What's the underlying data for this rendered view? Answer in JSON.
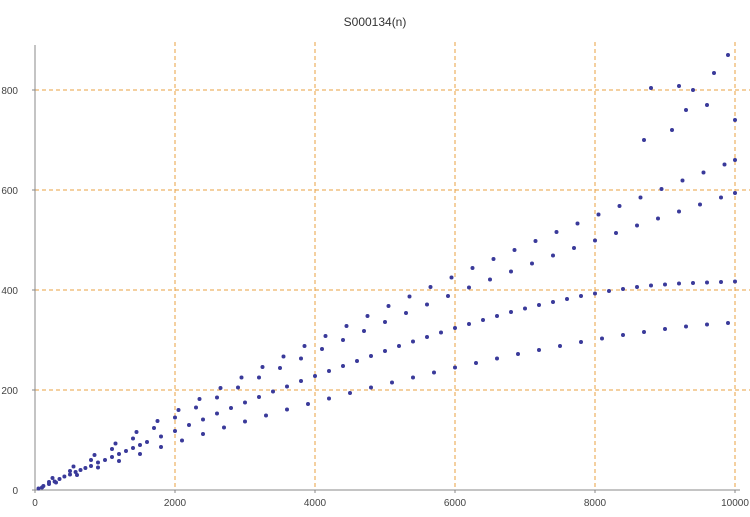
{
  "chart_data": {
    "type": "scatter",
    "title": "S000134(n)",
    "xlabel": "",
    "ylabel": "",
    "xlim": [
      0,
      10000
    ],
    "ylim": [
      0,
      880
    ],
    "xticks": [
      0,
      2000,
      4000,
      6000,
      8000,
      10000
    ],
    "yticks": [
      0,
      200,
      400,
      600,
      800
    ],
    "xtick_labels": [
      "0",
      "2000",
      "4000",
      "6000",
      "8000",
      "10000"
    ],
    "ytick_labels": [
      "0",
      "200",
      "400",
      "600",
      "800"
    ],
    "grid": true,
    "colors": {
      "points": "#3a3a9a",
      "grid": "#e8a040",
      "axis": "#888888"
    },
    "series": [
      {
        "values": [
          [
            50,
            3
          ],
          [
            120,
            8
          ],
          [
            200,
            12
          ],
          [
            280,
            17
          ],
          [
            350,
            22
          ],
          [
            420,
            27
          ],
          [
            500,
            31
          ],
          [
            580,
            36
          ],
          [
            650,
            40
          ],
          [
            720,
            44
          ],
          [
            800,
            48
          ],
          [
            900,
            55
          ],
          [
            1000,
            60
          ],
          [
            1100,
            66
          ],
          [
            1200,
            72
          ],
          [
            1300,
            78
          ],
          [
            1400,
            84
          ],
          [
            1500,
            90
          ],
          [
            1600,
            96
          ],
          [
            1800,
            107
          ],
          [
            2000,
            118
          ],
          [
            2200,
            130
          ],
          [
            2400,
            141
          ],
          [
            2600,
            153
          ],
          [
            2800,
            164
          ],
          [
            3000,
            175
          ],
          [
            3200,
            186
          ],
          [
            3400,
            197
          ],
          [
            3600,
            207
          ],
          [
            3800,
            218
          ],
          [
            4000,
            228
          ],
          [
            4200,
            238
          ],
          [
            4400,
            248
          ],
          [
            4600,
            258
          ],
          [
            4800,
            268
          ],
          [
            5000,
            278
          ],
          [
            5200,
            288
          ],
          [
            5400,
            297
          ],
          [
            5600,
            306
          ],
          [
            5800,
            315
          ],
          [
            6000,
            324
          ],
          [
            6200,
            332
          ],
          [
            6400,
            340
          ],
          [
            6600,
            348
          ],
          [
            6800,
            356
          ],
          [
            7000,
            363
          ],
          [
            7200,
            370
          ],
          [
            7400,
            376
          ],
          [
            7600,
            382
          ],
          [
            7800,
            388
          ],
          [
            8000,
            393
          ],
          [
            8200,
            398
          ],
          [
            8400,
            402
          ],
          [
            8600,
            406
          ],
          [
            8800,
            409
          ],
          [
            9000,
            411
          ],
          [
            9200,
            413
          ],
          [
            9400,
            414
          ],
          [
            9600,
            415
          ],
          [
            9800,
            416
          ],
          [
            10000,
            417
          ],
          [
            100,
            5
          ],
          [
            300,
            15
          ],
          [
            600,
            30
          ],
          [
            900,
            45
          ],
          [
            1200,
            58
          ],
          [
            1500,
            72
          ],
          [
            1800,
            86
          ],
          [
            2100,
            99
          ],
          [
            2400,
            112
          ],
          [
            2700,
            125
          ],
          [
            3000,
            137
          ],
          [
            3300,
            149
          ],
          [
            3600,
            161
          ],
          [
            3900,
            172
          ],
          [
            4200,
            183
          ],
          [
            4500,
            194
          ],
          [
            4800,
            205
          ],
          [
            5100,
            215
          ],
          [
            5400,
            225
          ],
          [
            5700,
            235
          ],
          [
            6000,
            245
          ],
          [
            6300,
            254
          ],
          [
            6600,
            263
          ],
          [
            6900,
            272
          ],
          [
            7200,
            280
          ],
          [
            7500,
            288
          ],
          [
            7800,
            296
          ],
          [
            8100,
            303
          ],
          [
            8400,
            310
          ],
          [
            8700,
            316
          ],
          [
            9000,
            322
          ],
          [
            9300,
            327
          ],
          [
            9600,
            331
          ],
          [
            9900,
            334
          ],
          [
            200,
            16
          ],
          [
            500,
            38
          ],
          [
            800,
            60
          ],
          [
            1100,
            82
          ],
          [
            1400,
            103
          ],
          [
            1700,
            124
          ],
          [
            2000,
            145
          ],
          [
            2300,
            165
          ],
          [
            2600,
            185
          ],
          [
            2900,
            205
          ],
          [
            3200,
            225
          ],
          [
            3500,
            244
          ],
          [
            3800,
            263
          ],
          [
            4100,
            282
          ],
          [
            4400,
            300
          ],
          [
            4700,
            318
          ],
          [
            5000,
            336
          ],
          [
            5300,
            354
          ],
          [
            5600,
            371
          ],
          [
            5900,
            388
          ],
          [
            6200,
            405
          ],
          [
            6500,
            421
          ],
          [
            6800,
            437
          ],
          [
            7100,
            453
          ],
          [
            7400,
            469
          ],
          [
            7700,
            484
          ],
          [
            8000,
            499
          ],
          [
            8300,
            514
          ],
          [
            8600,
            529
          ],
          [
            8900,
            543
          ],
          [
            9200,
            557
          ],
          [
            9500,
            571
          ],
          [
            9800,
            585
          ],
          [
            10000,
            594
          ],
          [
            250,
            24
          ],
          [
            550,
            47
          ],
          [
            850,
            70
          ],
          [
            1150,
            93
          ],
          [
            1450,
            116
          ],
          [
            1750,
            138
          ],
          [
            2050,
            160
          ],
          [
            2350,
            182
          ],
          [
            2650,
            204
          ],
          [
            2950,
            225
          ],
          [
            3250,
            246
          ],
          [
            3550,
            267
          ],
          [
            3850,
            288
          ],
          [
            4150,
            308
          ],
          [
            4450,
            328
          ],
          [
            4750,
            348
          ],
          [
            5050,
            368
          ],
          [
            5350,
            387
          ],
          [
            5650,
            406
          ],
          [
            5950,
            425
          ],
          [
            6250,
            444
          ],
          [
            6550,
            462
          ],
          [
            6850,
            480
          ],
          [
            7150,
            498
          ],
          [
            7450,
            516
          ],
          [
            7750,
            533
          ],
          [
            8050,
            551
          ],
          [
            8350,
            568
          ],
          [
            8650,
            585
          ],
          [
            8950,
            602
          ],
          [
            9250,
            619
          ],
          [
            9550,
            635
          ],
          [
            9850,
            651
          ],
          [
            10000,
            660
          ],
          [
            8800,
            804
          ],
          [
            9200,
            808
          ],
          [
            9400,
            800
          ],
          [
            9700,
            834
          ],
          [
            9900,
            870
          ],
          [
            10000,
            740
          ],
          [
            9600,
            770
          ],
          [
            9300,
            760
          ],
          [
            9100,
            720
          ],
          [
            8700,
            700
          ]
        ]
      }
    ]
  }
}
